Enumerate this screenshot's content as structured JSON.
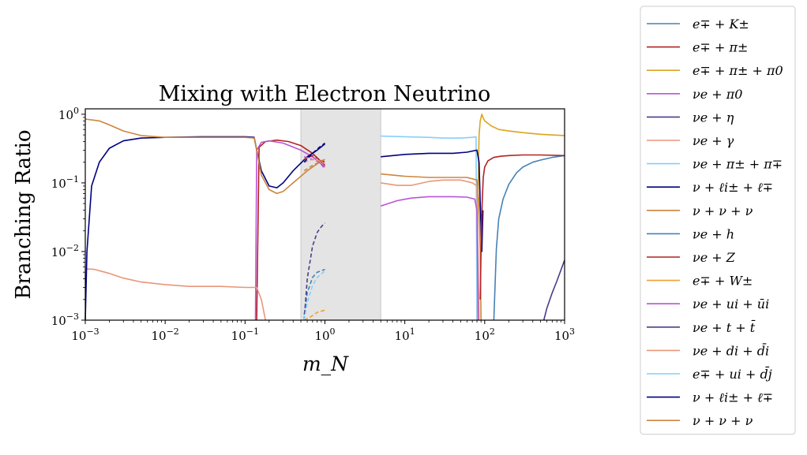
{
  "chart_data": {
    "type": "line",
    "title": "Mixing with Electron Neutrino",
    "xlabel": "m_N",
    "ylabel": "Branching Ratio",
    "xscale": "log",
    "yscale": "log",
    "xlim": [
      0.001,
      1000
    ],
    "ylim": [
      0.001,
      1.2
    ],
    "x_ticks": [
      {
        "value": 0.001,
        "base": "10",
        "exp": "−3"
      },
      {
        "value": 0.01,
        "base": "10",
        "exp": "−2"
      },
      {
        "value": 0.1,
        "base": "10",
        "exp": "−1"
      },
      {
        "value": 1,
        "base": "10",
        "exp": "0"
      },
      {
        "value": 10,
        "base": "10",
        "exp": "1"
      },
      {
        "value": 100,
        "base": "10",
        "exp": "2"
      },
      {
        "value": 1000,
        "base": "10",
        "exp": "3"
      }
    ],
    "y_ticks": [
      {
        "value": 0.001,
        "base": "10",
        "exp": "−3"
      },
      {
        "value": 0.01,
        "base": "10",
        "exp": "−2"
      },
      {
        "value": 0.1,
        "base": "10",
        "exp": "−1"
      },
      {
        "value": 1,
        "base": "10",
        "exp": "0"
      }
    ],
    "shaded_region": {
      "x": [
        0.5,
        5
      ],
      "color": "#e4e4e4"
    },
    "legend_position": "outside-right",
    "series": [
      {
        "name": "e∓ + K±",
        "color": "#4682b4",
        "dash": false,
        "x": [
          130,
          140,
          150,
          170,
          200,
          250,
          300,
          400,
          500,
          700,
          1000
        ],
        "y": [
          0.001,
          0.011,
          0.03,
          0.058,
          0.095,
          0.14,
          0.17,
          0.2,
          0.215,
          0.235,
          0.25
        ]
      },
      {
        "name": "e∓ + π±",
        "color": "#b22222",
        "dash": false,
        "x": [
          0.14,
          0.15,
          0.18,
          0.25,
          0.35,
          0.5,
          0.7,
          1.0
        ],
        "y": [
          0.001,
          0.33,
          0.4,
          0.42,
          0.4,
          0.35,
          0.27,
          0.18
        ]
      },
      {
        "name": "e∓ + π± + π0",
        "color": "#daa520",
        "dash": false,
        "x": [
          80,
          82,
          85,
          88,
          90,
          92,
          95,
          100,
          120,
          150,
          200,
          300,
          500,
          1000
        ],
        "y": [
          0.001,
          0.05,
          0.5,
          0.8,
          0.9,
          1.0,
          0.9,
          0.8,
          0.68,
          0.6,
          0.57,
          0.54,
          0.51,
          0.49
        ]
      },
      {
        "name": "νe + π0",
        "color": "#ba55d3",
        "dash": false,
        "x": [
          0.135,
          0.14,
          0.16,
          0.2,
          0.3,
          0.5,
          0.7,
          1.0
        ],
        "y": [
          0.001,
          0.3,
          0.39,
          0.41,
          0.38,
          0.3,
          0.24,
          0.17
        ]
      },
      {
        "name": "νe + η",
        "color": "#483d8b",
        "dash": false,
        "x": [
          550,
          600,
          700,
          800,
          1000
        ],
        "y": [
          0.001,
          0.0015,
          0.0025,
          0.0037,
          0.0075
        ]
      },
      {
        "name": "νe + γ",
        "color": "#e9967a",
        "dash": false,
        "x": [
          0.001,
          0.0013,
          0.002,
          0.003,
          0.005,
          0.01,
          0.02,
          0.05,
          0.1,
          0.14,
          0.16,
          0.18
        ],
        "y": [
          0.0056,
          0.0055,
          0.0048,
          0.0041,
          0.0036,
          0.0033,
          0.0031,
          0.0031,
          0.003,
          0.003,
          0.002,
          0.001
        ]
      },
      {
        "name": "νe + π± + π∓",
        "color": "#87cefa",
        "dash": false,
        "x": [
          5,
          10,
          20,
          30,
          50,
          70,
          78,
          80
        ],
        "y": [
          0.48,
          0.47,
          0.46,
          0.45,
          0.45,
          0.46,
          0.47,
          0.001
        ]
      },
      {
        "name": "ν + ℓi± + ℓ∓",
        "color": "#000080",
        "dash": false,
        "x": [
          0.001,
          0.00105,
          0.0012,
          0.0015,
          0.002,
          0.003,
          0.005,
          0.01,
          0.03,
          0.1,
          0.13,
          0.14,
          0.16,
          0.2,
          0.25,
          0.3,
          0.4,
          0.6,
          0.8,
          1.0
        ],
        "y": [
          0.001,
          0.01,
          0.09,
          0.2,
          0.32,
          0.41,
          0.45,
          0.46,
          0.47,
          0.47,
          0.46,
          0.3,
          0.15,
          0.09,
          0.085,
          0.1,
          0.15,
          0.24,
          0.3,
          0.37
        ]
      },
      {
        "name": "ν + ν + ν",
        "color": "#cd853f",
        "dash": false,
        "x": [
          0.001,
          0.0015,
          0.002,
          0.003,
          0.005,
          0.01,
          0.03,
          0.1,
          0.13,
          0.14,
          0.16,
          0.2,
          0.25,
          0.3,
          0.4,
          0.6,
          0.8,
          1.0
        ],
        "y": [
          0.85,
          0.8,
          0.7,
          0.57,
          0.49,
          0.46,
          0.46,
          0.46,
          0.45,
          0.3,
          0.13,
          0.08,
          0.07,
          0.075,
          0.1,
          0.15,
          0.19,
          0.22
        ]
      },
      {
        "name": "νe + h",
        "color": "#4682b4",
        "dash": true,
        "x": [
          0.55,
          0.6,
          0.7,
          0.8,
          1.0
        ],
        "y": [
          0.0012,
          0.0025,
          0.0042,
          0.005,
          0.0055
        ]
      },
      {
        "name": "νe + Z",
        "color": "#b22222",
        "dash": true,
        "x": [
          0.55,
          0.7,
          0.85,
          1.0
        ],
        "y": [
          0.22,
          0.25,
          0.22,
          0.2
        ]
      },
      {
        "name": "e∓ + W±",
        "color": "#f0a030",
        "dash": true,
        "x": [
          0.55,
          0.65,
          0.8,
          1.0
        ],
        "y": [
          0.0009,
          0.0011,
          0.0013,
          0.0014
        ]
      },
      {
        "name": "νe + ui + ūi",
        "color": "#ba55d3",
        "dash": true,
        "x": [
          0.55,
          0.7,
          0.85,
          1.0
        ],
        "y": [
          0.24,
          0.22,
          0.2,
          0.16
        ]
      },
      {
        "name": "νe + t + t̄",
        "color": "#483d8b",
        "dash": true,
        "x": [
          0.55,
          0.6,
          0.7,
          0.8,
          0.9,
          1.0
        ],
        "y": [
          0.001,
          0.004,
          0.012,
          0.019,
          0.023,
          0.026
        ]
      },
      {
        "name": "νe + di + d̄i",
        "color": "#e9967a",
        "dash": true,
        "x": [
          0.55,
          0.7,
          0.85,
          1.0
        ],
        "y": [
          0.2,
          0.22,
          0.21,
          0.19
        ]
      },
      {
        "name": "e∓ + ui + d̄j",
        "color": "#87cefa",
        "dash": true,
        "x": [
          0.55,
          0.6,
          0.7,
          0.8,
          1.0
        ],
        "y": [
          0.001,
          0.0018,
          0.0032,
          0.0042,
          0.0052
        ]
      },
      {
        "name": "ν + ℓi± + ℓ∓",
        "color": "#000080",
        "dash": true,
        "x": [
          0.55,
          0.7,
          0.85,
          1.0
        ],
        "y": [
          0.2,
          0.27,
          0.33,
          0.38
        ]
      },
      {
        "name": "ν + ν + ν",
        "color": "#cd853f",
        "dash": true,
        "x": [
          0.55,
          0.7,
          0.85,
          1.0
        ],
        "y": [
          0.15,
          0.18,
          0.2,
          0.22
        ]
      },
      {
        "name": "",
        "color": "#000080",
        "dash": false,
        "legend": false,
        "x": [
          5,
          10,
          20,
          40,
          60,
          80,
          85,
          88,
          92,
          95
        ],
        "y": [
          0.24,
          0.26,
          0.27,
          0.27,
          0.28,
          0.3,
          0.2,
          0.05,
          0.01,
          0.04
        ]
      },
      {
        "name": "",
        "color": "#cd853f",
        "dash": false,
        "legend": false,
        "x": [
          5,
          10,
          20,
          40,
          60,
          80,
          85,
          88,
          90
        ],
        "y": [
          0.135,
          0.125,
          0.12,
          0.12,
          0.12,
          0.11,
          0.05,
          0.01,
          0.001
        ]
      },
      {
        "name": "",
        "color": "#e9967a",
        "dash": false,
        "legend": false,
        "x": [
          5,
          8,
          12,
          20,
          30,
          50,
          70,
          80,
          85
        ],
        "y": [
          0.1,
          0.092,
          0.092,
          0.105,
          0.11,
          0.11,
          0.1,
          0.09,
          0.001
        ]
      },
      {
        "name": "",
        "color": "#ba55d3",
        "dash": false,
        "legend": false,
        "x": [
          5,
          8,
          12,
          20,
          40,
          60,
          75,
          80,
          83
        ],
        "y": [
          0.046,
          0.055,
          0.06,
          0.063,
          0.063,
          0.062,
          0.058,
          0.04,
          0.001
        ]
      },
      {
        "name": "",
        "color": "#b22222",
        "dash": false,
        "legend": false,
        "x": [
          88,
          90,
          93,
          96,
          100,
          110,
          130,
          160,
          200,
          300,
          500,
          1000
        ],
        "y": [
          0.002,
          0.01,
          0.05,
          0.12,
          0.17,
          0.21,
          0.235,
          0.245,
          0.25,
          0.255,
          0.255,
          0.25
        ]
      }
    ]
  }
}
